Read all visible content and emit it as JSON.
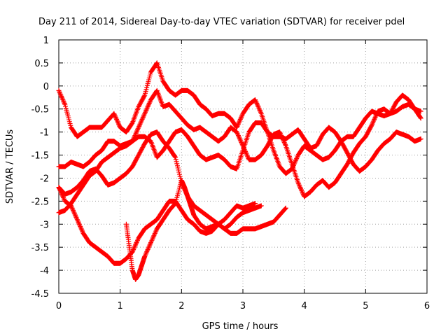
{
  "chart_data": {
    "type": "scatter",
    "title": "Day 211 of 2014, Sidereal Day-to-day VTEC variation (SDTVAR) for receiver pdel",
    "xlabel": "GPS time / hours",
    "ylabel": "SDTVAR / TECUs",
    "xlim": [
      0,
      6
    ],
    "ylim": [
      -4.5,
      1
    ],
    "x_ticks": [
      "0",
      "1",
      "2",
      "3",
      "4",
      "5",
      "6"
    ],
    "y_ticks": [
      "1",
      "0.5",
      "0",
      "-0.5",
      "-1",
      "-1.5",
      "-2",
      "-2.5",
      "-3",
      "-3.5",
      "-4",
      "-4.5"
    ],
    "grid": true,
    "marker": "+",
    "color": "#ff0000",
    "series": [
      {
        "x": [
          0.0,
          0.1,
          0.2,
          0.3,
          0.4,
          0.5,
          0.6,
          0.7,
          0.8,
          0.9,
          1.0,
          1.1,
          1.2,
          1.3,
          1.4,
          1.5,
          1.6,
          1.7,
          1.8,
          1.9,
          2.0,
          2.1,
          2.2,
          2.3,
          2.4,
          2.5,
          2.6,
          2.7,
          2.8,
          2.9,
          3.0,
          3.1,
          3.2,
          3.3,
          3.4,
          3.5,
          3.6,
          3.7,
          3.8,
          3.9,
          4.0,
          4.1,
          4.2,
          4.3,
          4.4,
          4.5,
          4.6,
          4.7,
          4.8,
          4.9,
          5.0,
          5.1,
          5.2,
          5.3,
          5.4,
          5.5,
          5.6,
          5.7,
          5.8,
          5.9
        ],
        "y": [
          -0.1,
          -0.4,
          -0.9,
          -1.1,
          -1.0,
          -0.9,
          -0.9,
          -0.9,
          -0.75,
          -0.6,
          -0.9,
          -1.0,
          -0.8,
          -0.45,
          -0.2,
          0.3,
          0.5,
          0.1,
          -0.1,
          -0.2,
          -0.1,
          -0.1,
          -0.2,
          -0.4,
          -0.5,
          -0.65,
          -0.6,
          -0.6,
          -0.7,
          -0.9,
          -0.6,
          -0.4,
          -0.3,
          -0.6,
          -1.0,
          -1.4,
          -1.75,
          -1.9,
          -1.8,
          -1.5,
          -1.3,
          -1.4,
          -1.5,
          -1.6,
          -1.55,
          -1.4,
          -1.2,
          -1.1,
          -1.1,
          -0.9,
          -0.7,
          -0.55,
          -0.6,
          -0.65,
          -0.6,
          -0.35,
          -0.2,
          -0.3,
          -0.5,
          -0.7
        ]
      },
      {
        "x": [
          0.0,
          0.1,
          0.2,
          0.3,
          0.4,
          0.5,
          0.6,
          0.7,
          0.8,
          0.9,
          1.0,
          1.1,
          1.2,
          1.3,
          1.4,
          1.5,
          1.6,
          1.7,
          1.8,
          1.9,
          2.0,
          2.1,
          2.2,
          2.3,
          2.4,
          2.5,
          2.6,
          2.7,
          2.8,
          2.9,
          3.0,
          3.1,
          3.2,
          3.3,
          3.4,
          3.5,
          3.6,
          3.7,
          3.8,
          3.9,
          4.0,
          4.1,
          4.2,
          4.3,
          4.4,
          4.5,
          4.6,
          4.7,
          4.8,
          4.9,
          5.0,
          5.1,
          5.2,
          5.3,
          5.4,
          5.5,
          5.6,
          5.7,
          5.8,
          5.9
        ],
        "y": [
          -1.75,
          -1.75,
          -1.65,
          -1.7,
          -1.75,
          -1.65,
          -1.5,
          -1.4,
          -1.2,
          -1.2,
          -1.3,
          -1.25,
          -1.2,
          -1.1,
          -1.1,
          -1.2,
          -1.55,
          -1.4,
          -1.2,
          -1.0,
          -0.95,
          -1.1,
          -1.3,
          -1.5,
          -1.6,
          -1.55,
          -1.5,
          -1.6,
          -1.75,
          -1.8,
          -1.4,
          -1.0,
          -0.8,
          -0.8,
          -1.0,
          -1.1,
          -1.1,
          -1.15,
          -1.05,
          -0.95,
          -1.15,
          -1.35,
          -1.3,
          -1.05,
          -0.9,
          -1.0,
          -1.2,
          -1.45,
          -1.7,
          -1.85,
          -1.75,
          -1.6,
          -1.4,
          -1.25,
          -1.15,
          -1.0,
          -1.05,
          -1.1,
          -1.2,
          -1.15
        ]
      },
      {
        "x": [
          0.0,
          0.1,
          0.2,
          0.3,
          0.4,
          0.5,
          0.6,
          0.7,
          0.8,
          0.9,
          1.0,
          1.1,
          1.2,
          1.3,
          1.4,
          1.5,
          1.6,
          1.7,
          1.8,
          1.9,
          2.0,
          2.1,
          2.2,
          2.3,
          2.4,
          2.5,
          2.6,
          2.7,
          2.8,
          2.9,
          3.0,
          3.1,
          3.2,
          3.3,
          3.4,
          3.5,
          3.6,
          3.7,
          3.8,
          3.9,
          4.0,
          4.1,
          4.2,
          4.3,
          4.4,
          4.5,
          4.6,
          4.7,
          4.8,
          4.9,
          5.0,
          5.1,
          5.2,
          5.3,
          5.4,
          5.5,
          5.6,
          5.7,
          5.8,
          5.9
        ],
        "y": [
          -2.75,
          -2.7,
          -2.55,
          -2.35,
          -2.15,
          -1.95,
          -1.85,
          -1.65,
          -1.55,
          -1.45,
          -1.35,
          -1.3,
          -1.2,
          -0.9,
          -0.6,
          -0.3,
          -0.1,
          -0.45,
          -0.4,
          -0.55,
          -0.7,
          -0.85,
          -0.95,
          -0.9,
          -1.0,
          -1.1,
          -1.2,
          -1.1,
          -0.9,
          -1.0,
          -1.3,
          -1.6,
          -1.6,
          -1.5,
          -1.3,
          -1.05,
          -1.0,
          -1.3,
          -1.7,
          -2.1,
          -2.4,
          -2.3,
          -2.15,
          -2.05,
          -2.2,
          -2.1,
          -1.9,
          -1.7,
          -1.45,
          -1.25,
          -1.1,
          -0.85,
          -0.55,
          -0.5,
          -0.6,
          -0.55,
          -0.45,
          -0.4,
          -0.5,
          -0.55
        ]
      },
      {
        "x": [
          0.0,
          0.1,
          0.2,
          0.3,
          0.4,
          0.5,
          0.6,
          0.7,
          0.8,
          0.9,
          1.0,
          1.1,
          1.2,
          1.3,
          1.4,
          1.5,
          1.6,
          1.7,
          1.8,
          1.9,
          2.0,
          2.1,
          2.2,
          2.3,
          2.4,
          2.5,
          2.6,
          2.7,
          2.8,
          2.9,
          3.0,
          3.1,
          3.2,
          3.3,
          3.4,
          3.5,
          3.6,
          3.7
        ],
        "y": [
          -2.2,
          -2.5,
          -2.6,
          -2.9,
          -3.2,
          -3.4,
          -3.5,
          -3.6,
          -3.7,
          -3.85,
          -3.85,
          -3.75,
          -3.6,
          -3.3,
          -3.1,
          -3.0,
          -2.9,
          -2.7,
          -2.5,
          -2.5,
          -2.7,
          -2.9,
          -3.0,
          -3.15,
          -3.2,
          -3.15,
          -3.0,
          -3.1,
          -3.2,
          -3.2,
          -3.1,
          -3.1,
          -3.1,
          -3.05,
          -3.0,
          -2.95,
          -2.8,
          -2.65
        ]
      },
      {
        "x": [
          0.0,
          0.1,
          0.2,
          0.3,
          0.4,
          0.5,
          0.6,
          0.7,
          0.8,
          0.9,
          1.0,
          1.1,
          1.2,
          1.3,
          1.4,
          1.5,
          1.6,
          1.7,
          1.8,
          1.9,
          2.0,
          2.1,
          2.2,
          2.3,
          2.4,
          2.5,
          2.6,
          2.7,
          2.8,
          2.9,
          3.0,
          3.1,
          3.2,
          3.3
        ],
        "y": [
          -2.2,
          -2.35,
          -2.3,
          -2.2,
          -2.05,
          -1.85,
          -1.8,
          -1.95,
          -2.15,
          -2.1,
          -2.0,
          -1.9,
          -1.75,
          -1.5,
          -1.25,
          -1.05,
          -1.0,
          -1.2,
          -1.35,
          -1.55,
          -2.1,
          -2.4,
          -2.6,
          -2.7,
          -2.8,
          -2.9,
          -3.0,
          -3.1,
          -3.0,
          -2.85,
          -2.75,
          -2.7,
          -2.65,
          -2.6
        ]
      },
      {
        "x": [
          1.1,
          1.15,
          1.2,
          1.25,
          1.3,
          1.35,
          1.4,
          1.5,
          1.6,
          1.7,
          1.8,
          1.9,
          2.0,
          2.05,
          2.1,
          2.15,
          2.2,
          2.3,
          2.4,
          2.5,
          2.6,
          2.7,
          2.8,
          2.9,
          3.0,
          3.1,
          3.2
        ],
        "y": [
          -3.0,
          -3.5,
          -4.0,
          -4.2,
          -4.1,
          -3.9,
          -3.7,
          -3.4,
          -3.1,
          -2.9,
          -2.7,
          -2.55,
          -2.05,
          -2.2,
          -2.4,
          -2.6,
          -2.8,
          -3.0,
          -3.1,
          -3.05,
          -3.0,
          -2.9,
          -2.75,
          -2.6,
          -2.65,
          -2.6,
          -2.55
        ]
      }
    ]
  }
}
